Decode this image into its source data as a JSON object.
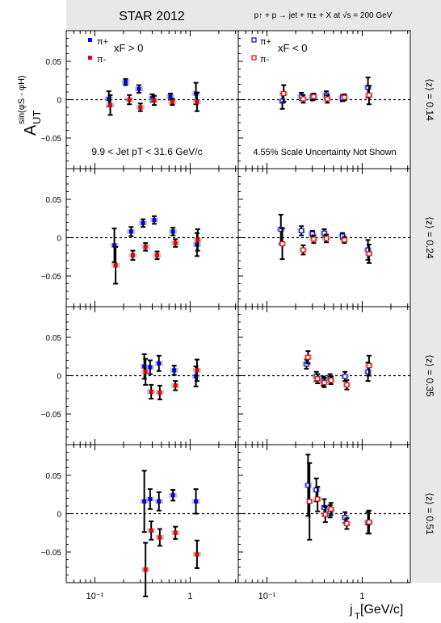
{
  "header": {
    "experiment": "STAR 2012",
    "process": "p↑ + p → jet + π± + X at √s = 200 GeV"
  },
  "ylabel": {
    "main": "A",
    "sub": "UT",
    "sup": "sin(φS - φH)"
  },
  "xlabel": {
    "main": "j",
    "sub": "T",
    "rest": " [GeV/c]"
  },
  "legend_left": {
    "pip": "π+",
    "pim": "π-",
    "cond": "xF > 0"
  },
  "legend_right": {
    "pip": "π+",
    "pim": "π-",
    "cond": "xF < 0"
  },
  "annotations": {
    "jet_pt": "9.9 < Jet pT < 31.6 GeV/c",
    "scale": "4.55% Scale Uncertainty Not Shown"
  },
  "row_labels": [
    "⟨z⟩ = 0.14",
    "⟨z⟩ = 0.24",
    "⟨z⟩ = 0.35",
    "⟨z⟩ = 0.51"
  ],
  "colors": {
    "pip": "#0000ee",
    "pim": "#ee0000",
    "frame_gray": "#e8e8e8",
    "sys_box": "#999999"
  },
  "axis": {
    "xscale": "log",
    "xlim": [
      0.05,
      3.2
    ],
    "ylim": [
      -0.09,
      0.09
    ],
    "yticks": [
      -0.05,
      0,
      0.05
    ],
    "ytick_labels": [
      "−0.05",
      "0",
      "0.05"
    ],
    "xtick_labels": [
      "10⁻¹",
      "1"
    ]
  },
  "chart_data": {
    "type": "scatter",
    "panels": [
      {
        "row": 0,
        "col": "xF>0",
        "series": [
          {
            "name": "π+",
            "points": [
              [
                0.14,
                0.001,
                0.01
              ],
              [
                0.21,
                0.023,
                0.004
              ],
              [
                0.29,
                0.014,
                0.005
              ],
              [
                0.4,
                0.002,
                0.005
              ],
              [
                0.62,
                0.004,
                0.004
              ],
              [
                1.15,
                0.008,
                0.014
              ]
            ]
          },
          {
            "name": "π-",
            "points": [
              [
                0.145,
                -0.007,
                0.013
              ],
              [
                0.23,
                0.0,
                0.006
              ],
              [
                0.3,
                -0.01,
                0.005
              ],
              [
                0.42,
                -0.001,
                0.006
              ],
              [
                0.65,
                -0.003,
                0.004
              ],
              [
                1.18,
                -0.003,
                0.012
              ]
            ]
          }
        ]
      },
      {
        "row": 0,
        "col": "xF<0",
        "series": [
          {
            "name": "π+",
            "points": [
              [
                0.145,
                -0.002,
                0.01
              ],
              [
                0.23,
                0.004,
                0.005
              ],
              [
                0.3,
                0.003,
                0.004
              ],
              [
                0.42,
                0.006,
                0.005
              ],
              [
                0.62,
                0.002,
                0.004
              ],
              [
                1.15,
                0.016,
                0.013
              ]
            ]
          },
          {
            "name": "π-",
            "points": [
              [
                0.15,
                0.008,
                0.011
              ],
              [
                0.24,
                0.001,
                0.005
              ],
              [
                0.31,
                0.004,
                0.004
              ],
              [
                0.43,
                0.001,
                0.005
              ],
              [
                0.65,
                0.003,
                0.004
              ],
              [
                1.18,
                0.006,
                0.012
              ]
            ]
          }
        ]
      },
      {
        "row": 1,
        "col": "xF>0",
        "series": [
          {
            "name": "π+",
            "points": [
              [
                0.16,
                -0.01,
                0.022
              ],
              [
                0.24,
                0.008,
                0.006
              ],
              [
                0.32,
                0.019,
                0.005
              ],
              [
                0.42,
                0.023,
                0.005
              ],
              [
                0.66,
                0.008,
                0.005
              ],
              [
                1.18,
                -0.009,
                0.015
              ]
            ]
          },
          {
            "name": "π-",
            "points": [
              [
                0.165,
                -0.036,
                0.024
              ],
              [
                0.25,
                -0.023,
                0.006
              ],
              [
                0.34,
                -0.012,
                0.005
              ],
              [
                0.45,
                -0.023,
                0.005
              ],
              [
                0.7,
                -0.007,
                0.005
              ],
              [
                1.2,
                -0.003,
                0.014
              ]
            ]
          }
        ]
      },
      {
        "row": 1,
        "col": "xF<0",
        "series": [
          {
            "name": "π+",
            "points": [
              [
                0.14,
                0.011,
                0.019
              ],
              [
                0.23,
                0.009,
                0.006
              ],
              [
                0.3,
                0.005,
                0.004
              ],
              [
                0.4,
                0.006,
                0.005
              ],
              [
                0.62,
                0.002,
                0.004
              ],
              [
                1.15,
                -0.016,
                0.013
              ]
            ]
          },
          {
            "name": "π-",
            "points": [
              [
                0.145,
                -0.008,
                0.02
              ],
              [
                0.24,
                -0.016,
                0.006
              ],
              [
                0.31,
                -0.002,
                0.005
              ],
              [
                0.42,
                -0.001,
                0.005
              ],
              [
                0.65,
                -0.003,
                0.004
              ],
              [
                1.18,
                -0.021,
                0.012
              ]
            ]
          }
        ]
      },
      {
        "row": 2,
        "col": "xF>0",
        "series": [
          {
            "name": "π+",
            "points": [
              [
                0.33,
                0.012,
                0.016
              ],
              [
                0.38,
                0.011,
                0.009
              ],
              [
                0.47,
                0.016,
                0.01
              ],
              [
                0.68,
                0.007,
                0.006
              ],
              [
                1.15,
                -0.001,
                0.013
              ]
            ]
          },
          {
            "name": "π-",
            "points": [
              [
                0.34,
                0.005,
                0.017
              ],
              [
                0.39,
                -0.021,
                0.009
              ],
              [
                0.48,
                -0.022,
                0.009
              ],
              [
                0.7,
                -0.013,
                0.006
              ],
              [
                1.18,
                0.007,
                0.014
              ]
            ]
          }
        ]
      },
      {
        "row": 2,
        "col": "xF<0",
        "series": [
          {
            "name": "π+",
            "points": [
              [
                0.26,
                0.015,
                0.006
              ],
              [
                0.33,
                -0.001,
                0.006
              ],
              [
                0.39,
                -0.007,
                0.006
              ],
              [
                0.46,
                -0.003,
                0.005
              ],
              [
                0.66,
                -0.001,
                0.006
              ],
              [
                1.15,
                0.005,
                0.012
              ]
            ]
          },
          {
            "name": "π-",
            "points": [
              [
                0.27,
                0.024,
                0.008
              ],
              [
                0.34,
                -0.004,
                0.006
              ],
              [
                0.4,
                -0.009,
                0.006
              ],
              [
                0.47,
                -0.006,
                0.005
              ],
              [
                0.69,
                -0.012,
                0.006
              ],
              [
                1.18,
                0.013,
                0.013
              ]
            ]
          }
        ]
      },
      {
        "row": 3,
        "col": "xF>0",
        "series": [
          {
            "name": "π+",
            "points": [
              [
                0.33,
                0.016,
                0.04
              ],
              [
                0.38,
                0.019,
                0.013
              ],
              [
                0.47,
                0.016,
                0.012
              ],
              [
                0.66,
                0.024,
                0.007
              ],
              [
                1.15,
                0.016,
                0.016
              ]
            ]
          },
          {
            "name": "π-",
            "points": [
              [
                0.34,
                -0.073,
                0.035
              ],
              [
                0.39,
                -0.022,
                0.012
              ],
              [
                0.48,
                -0.031,
                0.011
              ],
              [
                0.7,
                -0.025,
                0.008
              ],
              [
                1.18,
                -0.053,
                0.018
              ]
            ]
          }
        ]
      },
      {
        "row": 3,
        "col": "xF<0",
        "series": [
          {
            "name": "π+",
            "points": [
              [
                0.27,
                0.037,
                0.04
              ],
              [
                0.33,
                0.031,
                0.015
              ],
              [
                0.4,
                0.008,
                0.011
              ],
              [
                0.46,
                0.003,
                0.008
              ],
              [
                0.66,
                -0.005,
                0.007
              ],
              [
                1.15,
                -0.012,
                0.014
              ]
            ]
          },
          {
            "name": "π-",
            "points": [
              [
                0.28,
                0.016,
                0.05
              ],
              [
                0.34,
                0.019,
                0.016
              ],
              [
                0.41,
                -0.001,
                0.01
              ],
              [
                0.47,
                0.006,
                0.008
              ],
              [
                0.69,
                -0.013,
                0.007
              ],
              [
                1.18,
                -0.011,
                0.015
              ]
            ]
          }
        ]
      }
    ]
  }
}
